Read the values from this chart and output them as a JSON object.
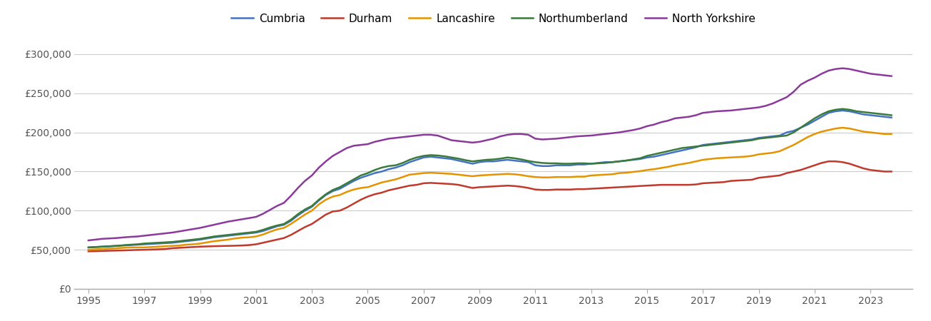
{
  "years": [
    1995,
    1995.25,
    1995.5,
    1995.75,
    1996,
    1996.25,
    1996.5,
    1996.75,
    1997,
    1997.25,
    1997.5,
    1997.75,
    1998,
    1998.25,
    1998.5,
    1998.75,
    1999,
    1999.25,
    1999.5,
    1999.75,
    2000,
    2000.25,
    2000.5,
    2000.75,
    2001,
    2001.25,
    2001.5,
    2001.75,
    2002,
    2002.25,
    2002.5,
    2002.75,
    2003,
    2003.25,
    2003.5,
    2003.75,
    2004,
    2004.25,
    2004.5,
    2004.75,
    2005,
    2005.25,
    2005.5,
    2005.75,
    2006,
    2006.25,
    2006.5,
    2006.75,
    2007,
    2007.25,
    2007.5,
    2007.75,
    2008,
    2008.25,
    2008.5,
    2008.75,
    2009,
    2009.25,
    2009.5,
    2009.75,
    2010,
    2010.25,
    2010.5,
    2010.75,
    2011,
    2011.25,
    2011.5,
    2011.75,
    2012,
    2012.25,
    2012.5,
    2012.75,
    2013,
    2013.25,
    2013.5,
    2013.75,
    2014,
    2014.25,
    2014.5,
    2014.75,
    2015,
    2015.25,
    2015.5,
    2015.75,
    2016,
    2016.25,
    2016.5,
    2016.75,
    2017,
    2017.25,
    2017.5,
    2017.75,
    2018,
    2018.25,
    2018.5,
    2018.75,
    2019,
    2019.25,
    2019.5,
    2019.75,
    2020,
    2020.25,
    2020.5,
    2020.75,
    2021,
    2021.25,
    2021.5,
    2021.75,
    2022,
    2022.25,
    2022.5,
    2022.75,
    2023,
    2023.25,
    2023.5,
    2023.75
  ],
  "cumbria": [
    53000,
    53500,
    54000,
    54500,
    55000,
    55500,
    56000,
    56500,
    57000,
    57500,
    58000,
    58500,
    59000,
    60000,
    61000,
    62000,
    63000,
    64500,
    66000,
    67000,
    68000,
    69000,
    70000,
    71000,
    72000,
    74000,
    77000,
    80000,
    82000,
    87000,
    94000,
    100000,
    105000,
    113000,
    120000,
    125000,
    128000,
    133000,
    138000,
    142000,
    145000,
    148000,
    150000,
    153000,
    155000,
    158000,
    162000,
    165000,
    168000,
    169000,
    168000,
    167000,
    166000,
    164000,
    162000,
    160000,
    162000,
    163000,
    163000,
    164000,
    165000,
    164000,
    163000,
    162000,
    158000,
    157000,
    157000,
    158000,
    158000,
    158000,
    159000,
    159000,
    160000,
    161000,
    162000,
    162000,
    163000,
    164000,
    165000,
    166000,
    168000,
    169000,
    171000,
    173000,
    175000,
    177000,
    179000,
    181000,
    184000,
    185000,
    186000,
    187000,
    188000,
    189000,
    190000,
    191000,
    193000,
    194000,
    195000,
    196000,
    200000,
    202000,
    206000,
    210000,
    215000,
    220000,
    225000,
    227000,
    228000,
    227000,
    225000,
    223000,
    222000,
    221000,
    220000,
    219000
  ],
  "durham": [
    48000,
    48200,
    48500,
    48800,
    49000,
    49200,
    49500,
    49800,
    50000,
    50300,
    50600,
    51000,
    52000,
    52500,
    53000,
    53500,
    54000,
    54300,
    54600,
    54800,
    55000,
    55200,
    55500,
    56000,
    57000,
    59000,
    61000,
    63000,
    65000,
    69000,
    74000,
    79000,
    83000,
    89000,
    95000,
    99000,
    100000,
    104000,
    109000,
    114000,
    118000,
    121000,
    123000,
    126000,
    128000,
    130000,
    132000,
    133000,
    135000,
    135500,
    135000,
    134500,
    134000,
    133000,
    131000,
    129000,
    130000,
    130500,
    131000,
    131500,
    132000,
    131500,
    130500,
    129000,
    127000,
    126500,
    126500,
    127000,
    127000,
    127000,
    127500,
    127500,
    128000,
    128500,
    129000,
    129500,
    130000,
    130500,
    131000,
    131500,
    132000,
    132500,
    133000,
    133000,
    133000,
    133000,
    133000,
    133500,
    135000,
    135500,
    136000,
    136500,
    138000,
    138500,
    139000,
    139500,
    142000,
    143000,
    144000,
    145000,
    148000,
    150000,
    152000,
    155000,
    158000,
    161000,
    163000,
    163000,
    162000,
    160000,
    157000,
    154000,
    152000,
    151000,
    150000,
    150000
  ],
  "lancashire": [
    50000,
    50500,
    51000,
    51500,
    52000,
    52500,
    53000,
    53000,
    53000,
    53500,
    54000,
    54500,
    55000,
    55500,
    56500,
    57000,
    58000,
    59500,
    61000,
    62000,
    63000,
    64500,
    65500,
    66000,
    67000,
    69500,
    73000,
    76000,
    78000,
    83000,
    89000,
    95000,
    100000,
    108000,
    114000,
    118000,
    120000,
    124000,
    127000,
    129000,
    130000,
    133000,
    136000,
    138000,
    140000,
    143000,
    146000,
    147000,
    148000,
    148500,
    148000,
    147500,
    147000,
    146000,
    145000,
    144000,
    145000,
    145500,
    146000,
    146500,
    147000,
    146500,
    145500,
    144000,
    143000,
    142500,
    142500,
    143000,
    143000,
    143000,
    143500,
    143500,
    145000,
    145500,
    146000,
    146500,
    148000,
    148500,
    149500,
    150500,
    152000,
    153000,
    154500,
    156000,
    158000,
    159500,
    161000,
    163000,
    165000,
    166000,
    167000,
    167500,
    168000,
    168500,
    169000,
    170000,
    172000,
    173000,
    174000,
    176000,
    180000,
    184000,
    189000,
    194000,
    198000,
    201000,
    203000,
    205000,
    206000,
    205000,
    203000,
    201000,
    200000,
    199000,
    198000,
    198000
  ],
  "northumberland": [
    53000,
    53500,
    54000,
    54500,
    55000,
    55800,
    56500,
    57000,
    58000,
    58500,
    59000,
    59500,
    60000,
    61000,
    62000,
    63000,
    64000,
    65500,
    67000,
    68000,
    69000,
    70000,
    71000,
    72000,
    73000,
    75500,
    78500,
    81000,
    83000,
    88500,
    95500,
    101500,
    106000,
    114000,
    121000,
    126500,
    130000,
    135000,
    140000,
    145000,
    148000,
    152000,
    155000,
    157000,
    158000,
    161000,
    165000,
    168000,
    170000,
    171000,
    170500,
    169500,
    168000,
    166500,
    164500,
    163000,
    164000,
    165000,
    165500,
    166500,
    168000,
    167000,
    165500,
    163500,
    162000,
    161000,
    160500,
    160500,
    160000,
    160000,
    160500,
    160500,
    160000,
    160500,
    161000,
    162000,
    163000,
    164000,
    165500,
    167000,
    170000,
    172000,
    174000,
    176000,
    178000,
    180000,
    181000,
    182000,
    183000,
    184000,
    185000,
    186000,
    187000,
    188000,
    189000,
    190000,
    192000,
    193000,
    194000,
    195000,
    196000,
    200000,
    206000,
    212000,
    218000,
    223000,
    227000,
    229000,
    230000,
    229000,
    227000,
    226000,
    225000,
    224000,
    223000,
    222000
  ],
  "north_yorkshire": [
    62000,
    63000,
    64000,
    64500,
    65000,
    65800,
    66500,
    67000,
    68000,
    69000,
    70000,
    71000,
    72000,
    73500,
    75000,
    76500,
    78000,
    80000,
    82000,
    84000,
    86000,
    87500,
    89000,
    90500,
    92000,
    96000,
    101000,
    106000,
    110000,
    119000,
    129000,
    138000,
    145000,
    155000,
    163000,
    170000,
    175000,
    180000,
    183000,
    184000,
    185000,
    188000,
    190000,
    192000,
    193000,
    194000,
    195000,
    196000,
    197000,
    197000,
    196000,
    193000,
    190000,
    189000,
    188000,
    187000,
    188000,
    190000,
    192000,
    195000,
    197000,
    198000,
    198000,
    197000,
    192000,
    191000,
    191500,
    192000,
    193000,
    194000,
    195000,
    195500,
    196000,
    197000,
    198000,
    199000,
    200000,
    201500,
    203000,
    205000,
    208000,
    210000,
    213000,
    215000,
    218000,
    219000,
    220000,
    222000,
    225000,
    226000,
    227000,
    227500,
    228000,
    229000,
    230000,
    231000,
    232000,
    234000,
    237000,
    241000,
    245000,
    252000,
    261000,
    266000,
    270000,
    275000,
    279000,
    281000,
    282000,
    281000,
    279000,
    277000,
    275000,
    274000,
    273000,
    272000
  ],
  "colors": {
    "cumbria": "#4472C4",
    "durham": "#C0392B",
    "lancashire": "#E59400",
    "northumberland": "#3A7A3A",
    "north_yorkshire": "#8B3A9C"
  },
  "legend_labels": [
    "Cumbria",
    "Durham",
    "Lancashire",
    "Northumberland",
    "North Yorkshire"
  ],
  "y_ticks": [
    0,
    50000,
    100000,
    150000,
    200000,
    250000,
    300000
  ],
  "y_tick_labels": [
    "£0",
    "£50,000",
    "£100,000",
    "£150,000",
    "£200,000",
    "£250,000",
    "£300,000"
  ],
  "x_ticks": [
    1995,
    1997,
    1999,
    2001,
    2003,
    2005,
    2007,
    2009,
    2011,
    2013,
    2015,
    2017,
    2019,
    2021,
    2023
  ],
  "ylim": [
    0,
    320000
  ],
  "xlim": [
    1994.5,
    2024.5
  ],
  "background_color": "#ffffff",
  "line_width": 1.8
}
